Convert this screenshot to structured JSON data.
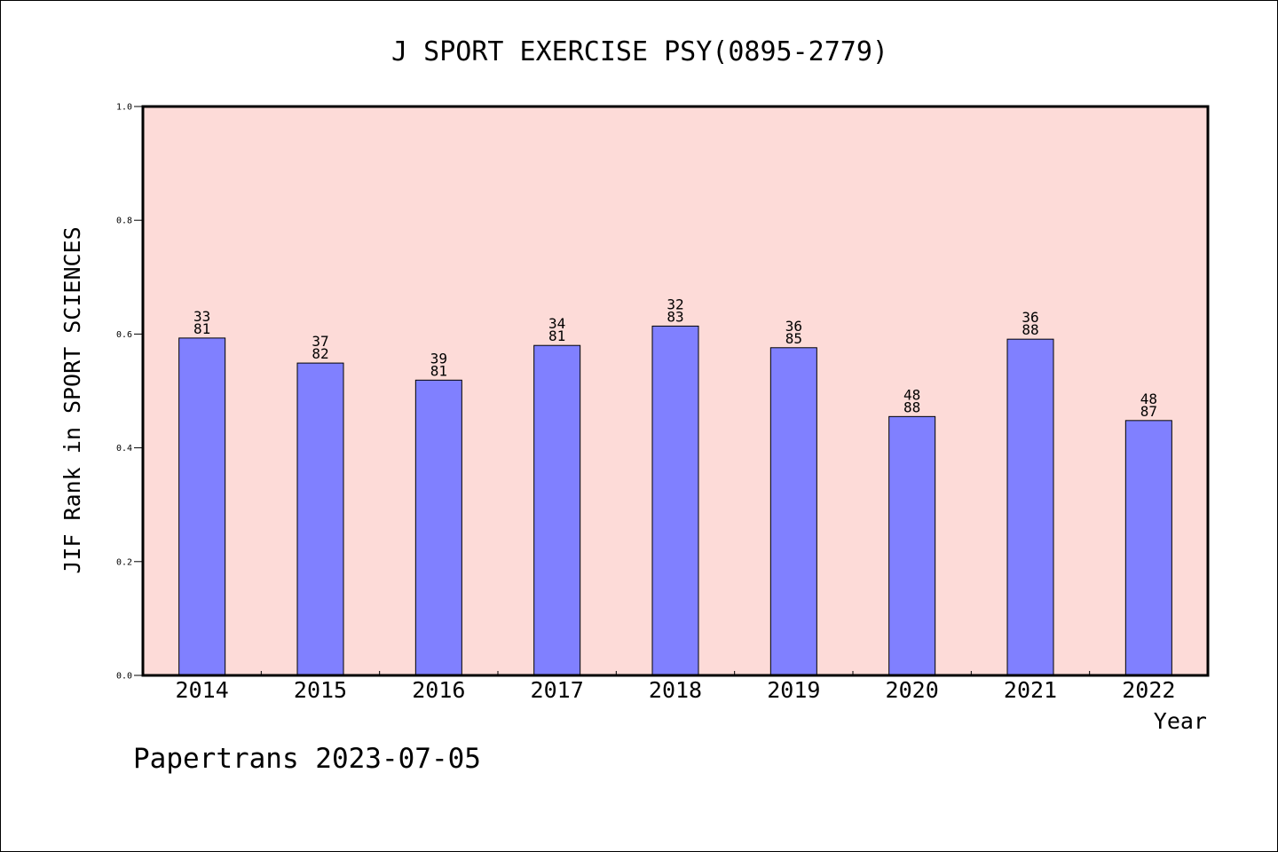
{
  "chart_data": {
    "type": "bar",
    "title": "J SPORT EXERCISE PSY(0895-2779)",
    "xlabel": "Year",
    "ylabel": "JIF Rank in SPORT SCIENCES",
    "footer": "Papertrans 2023-07-05",
    "categories": [
      "2014",
      "2015",
      "2016",
      "2017",
      "2018",
      "2019",
      "2020",
      "2021",
      "2022"
    ],
    "values": [
      0.593,
      0.549,
      0.519,
      0.58,
      0.614,
      0.576,
      0.455,
      0.591,
      0.448
    ],
    "rank_labels": [
      {
        "top": "33",
        "bottom": "81"
      },
      {
        "top": "37",
        "bottom": "82"
      },
      {
        "top": "39",
        "bottom": "81"
      },
      {
        "top": "34",
        "bottom": "81"
      },
      {
        "top": "32",
        "bottom": "83"
      },
      {
        "top": "36",
        "bottom": "85"
      },
      {
        "top": "48",
        "bottom": "88"
      },
      {
        "top": "36",
        "bottom": "88"
      },
      {
        "top": "48",
        "bottom": "87"
      }
    ],
    "ylim": [
      0,
      1.0
    ],
    "yticks": [
      "0.0",
      "0.2",
      "0.4",
      "0.6",
      "0.8",
      "1.0"
    ],
    "colors": {
      "plot_background": "#fddbd8",
      "bar_fill": "#8080ff",
      "bar_stroke": "#000000",
      "axis": "#000000"
    },
    "grid": false
  }
}
